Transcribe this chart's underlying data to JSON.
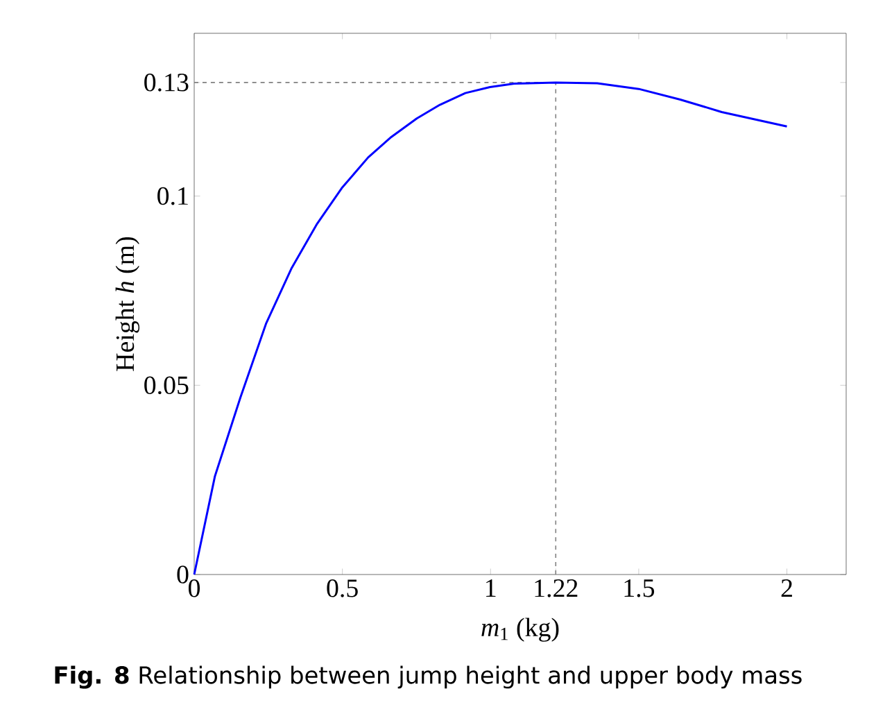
{
  "chart_data": {
    "type": "line",
    "xlabel": "*m*$_{1}$ (kg)",
    "ylabel": "Height *h* (m)",
    "annotations": [
      "**Fig. 8** Relationship between jump height and upper body mass"
    ],
    "xlim": [
      0,
      2.2
    ],
    "ylim": [
      0,
      0.143
    ],
    "xticks": [
      0,
      0.5,
      1,
      1.22,
      1.5,
      2
    ],
    "yticks": [
      0,
      0.05,
      0.1,
      0.13
    ],
    "grid": false,
    "marker": "none",
    "line_style": "solid",
    "series": [
      {
        "color": "#0000ff",
        "x": [
          0,
          0.07,
          0.156,
          0.243,
          0.329,
          0.415,
          0.498,
          0.587,
          0.665,
          0.751,
          0.829,
          0.915,
          0.998,
          1.08,
          1.22,
          1.36,
          1.5,
          1.64,
          1.78,
          2.0
        ],
        "values": [
          0,
          0.026,
          0.0468,
          0.0664,
          0.081,
          0.0927,
          0.1021,
          0.1102,
          0.1156,
          0.1205,
          0.1241,
          0.1272,
          0.1288,
          0.1297,
          0.13,
          0.1298,
          0.1283,
          0.1255,
          0.1222,
          0.1184
        ]
      }
    ],
    "ref_lines": [
      {
        "axis": "y",
        "value": 0.13,
        "color": "#808080",
        "line_style": "dashed"
      },
      {
        "axis": "x",
        "value": 1.22,
        "color": "#808080",
        "line_style": "dashed"
      }
    ]
  }
}
